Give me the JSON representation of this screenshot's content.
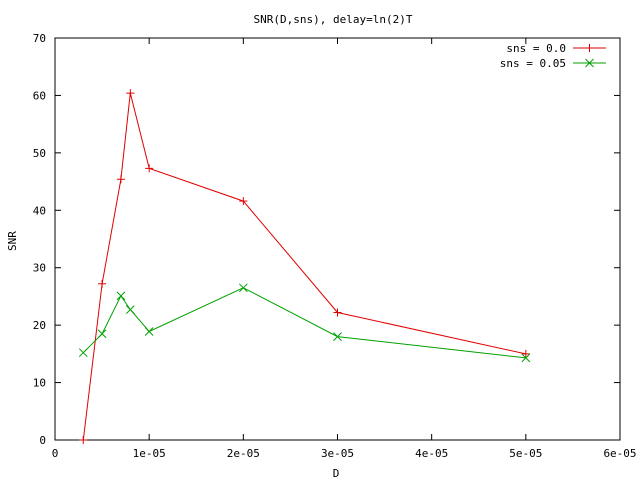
{
  "chart_data": {
    "type": "line",
    "title": "SNR(D,sns), delay=ln(2)T",
    "xlabel": "D",
    "ylabel": "SNR",
    "xlim": [
      0,
      6e-05
    ],
    "ylim": [
      0,
      70
    ],
    "x_ticks": [
      {
        "value": 0,
        "label": "0"
      },
      {
        "value": 1e-05,
        "label": "1e-05"
      },
      {
        "value": 2e-05,
        "label": "2e-05"
      },
      {
        "value": 3e-05,
        "label": "3e-05"
      },
      {
        "value": 4e-05,
        "label": "4e-05"
      },
      {
        "value": 5e-05,
        "label": "5e-05"
      },
      {
        "value": 6e-05,
        "label": "6e-05"
      }
    ],
    "y_ticks": [
      {
        "value": 0,
        "label": "0"
      },
      {
        "value": 10,
        "label": "10"
      },
      {
        "value": 20,
        "label": "20"
      },
      {
        "value": 30,
        "label": "30"
      },
      {
        "value": 40,
        "label": "40"
      },
      {
        "value": 50,
        "label": "50"
      },
      {
        "value": 60,
        "label": "60"
      },
      {
        "value": 70,
        "label": "70"
      }
    ],
    "grid": false,
    "legend_position": "top-right",
    "series": [
      {
        "name": "sns = 0.0",
        "color": "#e00000",
        "marker": "plus",
        "x": [
          3e-06,
          5e-06,
          7e-06,
          8e-06,
          1e-05,
          2e-05,
          3e-05,
          5e-05
        ],
        "y": [
          0,
          27.2,
          45.4,
          60.4,
          47.3,
          41.6,
          22.2,
          15.0
        ]
      },
      {
        "name": "sns = 0.05",
        "color": "#00a000",
        "marker": "cross",
        "x": [
          3e-06,
          5e-06,
          7e-06,
          8e-06,
          1e-05,
          2e-05,
          3e-05,
          5e-05
        ],
        "y": [
          15.2,
          18.5,
          25.1,
          22.7,
          18.9,
          26.5,
          18.0,
          14.3
        ]
      }
    ]
  }
}
